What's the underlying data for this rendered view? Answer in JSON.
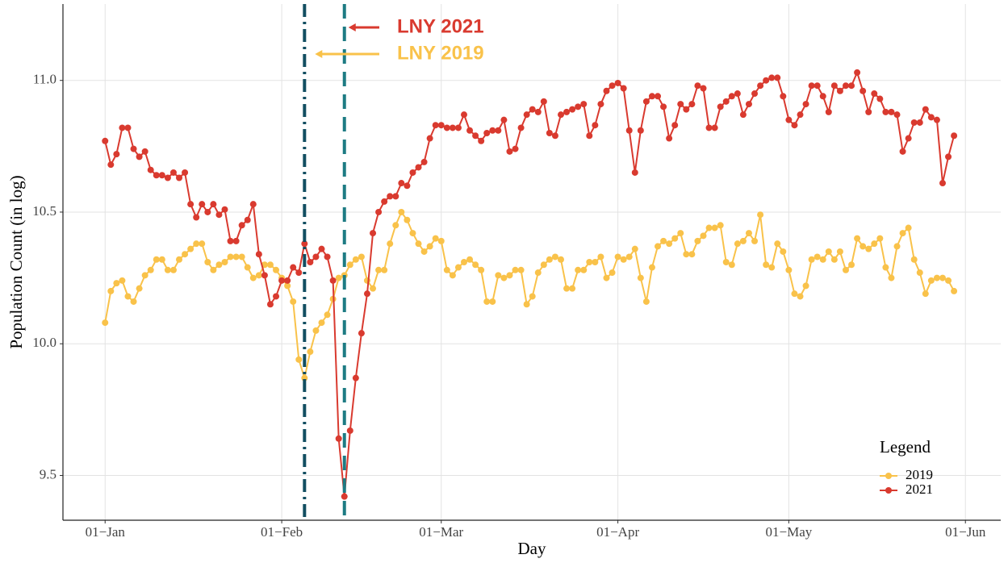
{
  "chart_data": {
    "type": "line",
    "x_label": "Day",
    "y_label": "Population Count (in log)",
    "xlim": [
      -7.4,
      157.2
    ],
    "ylim": [
      9.33,
      11.29
    ],
    "xticks": [
      {
        "value": 0,
        "label": "01−Jan"
      },
      {
        "value": 31,
        "label": "01−Feb"
      },
      {
        "value": 59,
        "label": "01−Mar"
      },
      {
        "value": 90,
        "label": "01−Apr"
      },
      {
        "value": 120,
        "label": "01−May"
      },
      {
        "value": 151,
        "label": "01−Jun"
      }
    ],
    "yticks": [
      9.5,
      {
        "value": 10,
        "label": "10.0"
      },
      10.5,
      {
        "value": 11,
        "label": "11.0"
      }
    ],
    "grid": true,
    "legend_title": "Legend",
    "legend_position": "bottom-right",
    "x": [
      0,
      1,
      2,
      3,
      4,
      5,
      6,
      7,
      8,
      9,
      10,
      11,
      12,
      13,
      14,
      15,
      16,
      17,
      18,
      19,
      20,
      21,
      22,
      23,
      24,
      25,
      26,
      27,
      28,
      29,
      30,
      31,
      32,
      33,
      34,
      35,
      36,
      37,
      38,
      39,
      40,
      41,
      42,
      43,
      44,
      45,
      46,
      47,
      48,
      49,
      50,
      51,
      52,
      53,
      54,
      55,
      56,
      57,
      58,
      59,
      60,
      61,
      62,
      63,
      64,
      65,
      66,
      67,
      68,
      69,
      70,
      71,
      72,
      73,
      74,
      75,
      76,
      77,
      78,
      79,
      80,
      81,
      82,
      83,
      84,
      85,
      86,
      87,
      88,
      89,
      90,
      91,
      92,
      93,
      94,
      95,
      96,
      97,
      98,
      99,
      100,
      101,
      102,
      103,
      104,
      105,
      106,
      107,
      108,
      109,
      110,
      111,
      112,
      113,
      114,
      115,
      116,
      117,
      118,
      119,
      120,
      121,
      122,
      123,
      124,
      125,
      126,
      127,
      128,
      129,
      130,
      131,
      132,
      133,
      134,
      135,
      136,
      137,
      138,
      139,
      140,
      141,
      142,
      143,
      144,
      145,
      146,
      147,
      148,
      149
    ],
    "series": [
      {
        "name": "2019",
        "color": "#f9c24a",
        "values": [
          10.08,
          10.2,
          10.23,
          10.24,
          10.18,
          10.16,
          10.21,
          10.26,
          10.28,
          10.32,
          10.32,
          10.28,
          10.28,
          10.32,
          10.34,
          10.36,
          10.38,
          10.38,
          10.31,
          10.28,
          10.3,
          10.31,
          10.33,
          10.33,
          10.33,
          10.29,
          10.25,
          10.26,
          10.3,
          10.3,
          10.28,
          10.25,
          10.22,
          10.16,
          9.94,
          9.87,
          9.97,
          10.05,
          10.08,
          10.11,
          10.17,
          10.25,
          10.26,
          10.3,
          10.32,
          10.33,
          10.24,
          10.21,
          10.28,
          10.28,
          10.38,
          10.45,
          10.5,
          10.47,
          10.42,
          10.38,
          10.35,
          10.37,
          10.4,
          10.39,
          10.28,
          10.26,
          10.29,
          10.31,
          10.32,
          10.3,
          10.28,
          10.16,
          10.16,
          10.26,
          10.25,
          10.26,
          10.28,
          10.28,
          10.15,
          10.18,
          10.27,
          10.3,
          10.32,
          10.33,
          10.32,
          10.21,
          10.21,
          10.28,
          10.28,
          10.31,
          10.31,
          10.33,
          10.25,
          10.27,
          10.33,
          10.32,
          10.33,
          10.36,
          10.25,
          10.16,
          10.29,
          10.37,
          10.39,
          10.38,
          10.4,
          10.42,
          10.34,
          10.34,
          10.39,
          10.41,
          10.44,
          10.44,
          10.45,
          10.31,
          10.3,
          10.38,
          10.39,
          10.42,
          10.39,
          10.49,
          10.3,
          10.29,
          10.38,
          10.35,
          10.28,
          10.19,
          10.18,
          10.22,
          10.32,
          10.33,
          10.32,
          10.35,
          10.32,
          10.35,
          10.28,
          10.3,
          10.4,
          10.37,
          10.36,
          10.38,
          10.4,
          10.29,
          10.25,
          10.37,
          10.42,
          10.44,
          10.32,
          10.27,
          10.19,
          10.24,
          10.25,
          10.25,
          10.24,
          10.2
        ]
      },
      {
        "name": "2021",
        "color": "#d93a2f",
        "values": [
          10.77,
          10.68,
          10.72,
          10.82,
          10.82,
          10.74,
          10.71,
          10.73,
          10.66,
          10.64,
          10.64,
          10.63,
          10.65,
          10.63,
          10.65,
          10.53,
          10.48,
          10.53,
          10.5,
          10.53,
          10.49,
          10.51,
          10.39,
          10.39,
          10.45,
          10.47,
          10.53,
          10.34,
          10.26,
          10.15,
          10.18,
          10.24,
          10.24,
          10.29,
          10.27,
          10.38,
          10.31,
          10.33,
          10.36,
          10.33,
          10.24,
          9.64,
          9.42,
          9.67,
          9.87,
          10.04,
          10.19,
          10.42,
          10.5,
          10.54,
          10.56,
          10.56,
          10.61,
          10.6,
          10.65,
          10.67,
          10.69,
          10.78,
          10.83,
          10.83,
          10.82,
          10.82,
          10.82,
          10.87,
          10.81,
          10.79,
          10.77,
          10.8,
          10.81,
          10.81,
          10.85,
          10.73,
          10.74,
          10.82,
          10.87,
          10.89,
          10.88,
          10.92,
          10.8,
          10.79,
          10.87,
          10.88,
          10.89,
          10.9,
          10.91,
          10.79,
          10.83,
          10.91,
          10.96,
          10.98,
          10.99,
          10.97,
          10.81,
          10.65,
          10.81,
          10.92,
          10.94,
          10.94,
          10.9,
          10.78,
          10.83,
          10.91,
          10.89,
          10.91,
          10.98,
          10.97,
          10.82,
          10.82,
          10.9,
          10.92,
          10.94,
          10.95,
          10.87,
          10.91,
          10.95,
          10.98,
          11.0,
          11.01,
          11.01,
          10.94,
          10.85,
          10.83,
          10.87,
          10.91,
          10.98,
          10.98,
          10.94,
          10.88,
          10.98,
          10.96,
          10.98,
          10.98,
          11.03,
          10.96,
          10.88,
          10.95,
          10.93,
          10.88,
          10.88,
          10.87,
          10.73,
          10.78,
          10.84,
          10.84,
          10.89,
          10.86,
          10.85,
          10.61,
          10.71,
          10.79
        ]
      }
    ],
    "vlines": [
      {
        "x": 35,
        "style": "dotdash",
        "color": "#124e61"
      },
      {
        "x": 42,
        "style": "dashed",
        "color": "#1d7b83"
      }
    ],
    "annotations": [
      {
        "text": "LNY 2021",
        "color": "#d93a2f"
      },
      {
        "text": "LNY 2019",
        "color": "#f9c24a"
      }
    ]
  }
}
